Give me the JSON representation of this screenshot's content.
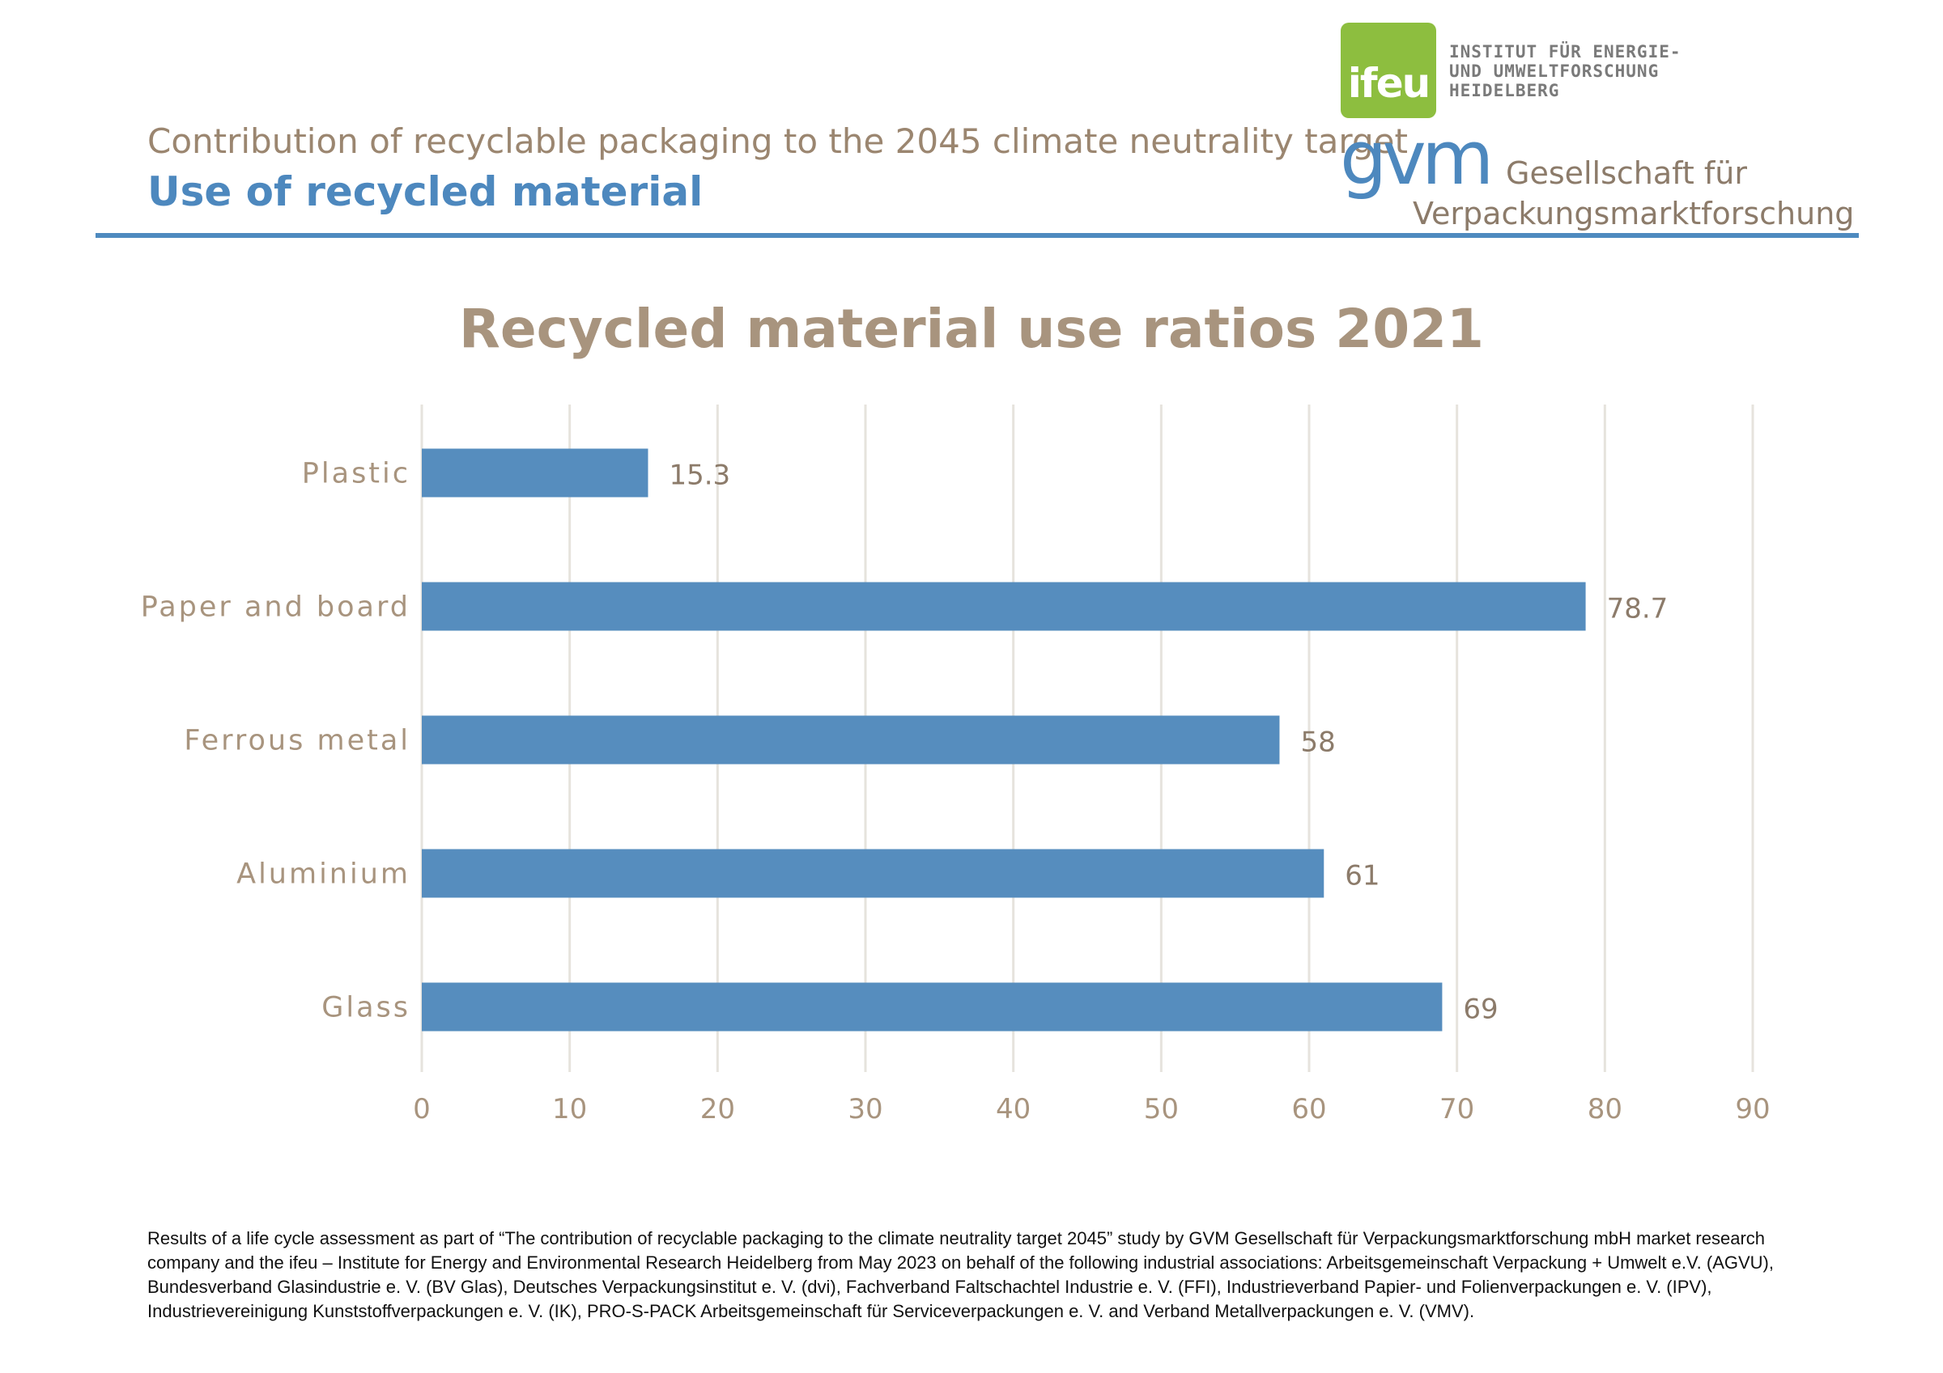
{
  "header": {
    "subtitle": "Contribution of recyclable packaging to the 2045 climate neutrality target",
    "title": "Use of recycled material"
  },
  "logos": {
    "ifeu": {
      "mark": "ifeu",
      "name": "INSTITUT FÜR ENERGIE-\nUND UMWELTFORSCHUNG\nHEIDELBERG"
    },
    "gvm": {
      "mark": "gvm",
      "line1": "Gesellschaft für",
      "line2": "Verpackungsmarktforschung"
    }
  },
  "chart_data": {
    "type": "bar",
    "orientation": "horizontal",
    "title": "Recycled material use ratios 2021",
    "categories": [
      "Plastic",
      "Paper and board",
      "Ferrous metal",
      "Aluminium",
      "Glass"
    ],
    "values": [
      15.3,
      78.7,
      58,
      61,
      69
    ],
    "value_labels": [
      "15.3",
      "78.7",
      "58",
      "61",
      "69"
    ],
    "xlim": [
      0,
      90
    ],
    "xticks": [
      0,
      10,
      20,
      30,
      40,
      50,
      60,
      70,
      80,
      90
    ],
    "xlabel": "",
    "ylabel": "",
    "grid": "vertical",
    "legend": "none"
  },
  "colors": {
    "bar": "#568DBE",
    "grid": "#E6E3DD",
    "label": "#A8947E",
    "value_label": "#8C7B6A"
  },
  "footnote": "Results of a life cycle assessment as part of “The contribution of recyclable packaging to the climate neutrality target 2045” study by GVM Gesellschaft für Verpackungsmarktforschung mbH market research company and the ifeu – Institute for Energy and Environmental Research Heidelberg from May 2023 on behalf of the following industrial associations: Arbeitsgemeinschaft Verpackung + Umwelt e.V. (AGVU), Bundesverband Glasindustrie e. V. (BV Glas), Deutsches Verpackungsinstitut e. V. (dvi), Fachverband Faltschachtel Industrie e. V. (FFI), Industrieverband Papier- und Folienverpackungen e. V. (IPV), Industrievereinigung Kunststoffverpackungen e. V. (IK), PRO-S-PACK Arbeitsgemeinschaft für Serviceverpackungen e. V. and Verband Metallverpackungen e. V. (VMV)."
}
